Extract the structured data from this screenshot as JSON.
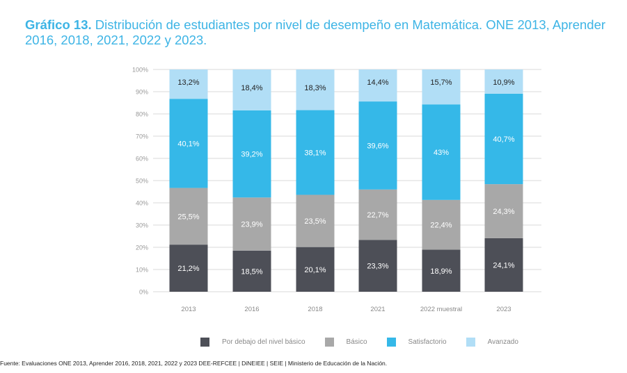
{
  "title": {
    "bold": "Gráfico 13.",
    "text": " Distribución de estudiantes por nivel de desempeño en Matemática. ONE 2013, Aprender 2016, 2018, 2021, 2022 y 2023."
  },
  "chart_data": {
    "type": "bar",
    "stacked": true,
    "categories": [
      "2013",
      "2016",
      "2018",
      "2021",
      "2022 muestral",
      "2023"
    ],
    "ylim": [
      0,
      100
    ],
    "yticks": [
      "0%",
      "10%",
      "20%",
      "30%",
      "40%",
      "50%",
      "60%",
      "70%",
      "80%",
      "90%",
      "100%"
    ],
    "grid": true,
    "legend_position": "bottom",
    "series": [
      {
        "name": "Por debajo del nivel básico",
        "color": "#4d4f57",
        "values": [
          21.2,
          18.5,
          20.1,
          23.3,
          18.9,
          24.1
        ],
        "labels": [
          "21,2%",
          "18,5%",
          "20,1%",
          "23,3%",
          "18,9%",
          "24,1%"
        ]
      },
      {
        "name": "Básico",
        "color": "#a8a8a8",
        "values": [
          25.5,
          23.9,
          23.5,
          22.7,
          22.4,
          24.3
        ],
        "labels": [
          "25,5%",
          "23,9%",
          "23,5%",
          "22,7%",
          "22,4%",
          "24,3%"
        ]
      },
      {
        "name": "Satisfactorio",
        "color": "#35b8e8",
        "values": [
          40.1,
          39.2,
          38.1,
          39.6,
          43,
          40.7
        ],
        "labels": [
          "40,1%",
          "39,2%",
          "38,1%",
          "39,6%",
          "43%",
          "40,7%"
        ]
      },
      {
        "name": "Avanzado",
        "color": "#b1def6",
        "values": [
          13.2,
          18.4,
          18.3,
          14.4,
          15.7,
          10.9
        ],
        "labels": [
          "13,2%",
          "18,4%",
          "18,3%",
          "14,4%",
          "15,7%",
          "10,9%"
        ]
      }
    ]
  },
  "source": "Fuente: Evaluaciones ONE 2013, Aprender 2016, 2018, 2021, 2022 y 2023 DEE-REFCEE | DiNEIEE | SEIE | Ministerio de Educación de la Nación."
}
